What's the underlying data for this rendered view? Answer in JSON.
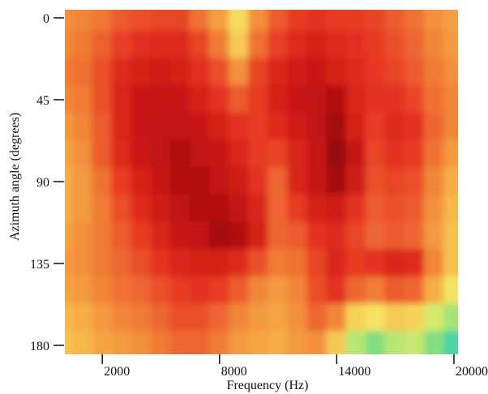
{
  "chart_data": {
    "type": "heatmap",
    "xlabel": "Frequency (Hz)",
    "ylabel": "Azimuth angle (degrees)",
    "x_ticks": [
      2000,
      8000,
      14000,
      20000
    ],
    "y_ticks": [
      0,
      45,
      90,
      135,
      180
    ],
    "xlim": [
      0,
      20000
    ],
    "ylim": [
      0,
      180
    ],
    "y_inverted": true,
    "colormap": "jet",
    "palette": [
      "#1a5fd6",
      "#17c9c9",
      "#8ee07a",
      "#f4ee6a",
      "#f7b84a",
      "#f07a35",
      "#e63423",
      "#c41212",
      "#6e0a08"
    ],
    "x_freqs": [
      0,
      1000,
      2000,
      3000,
      4000,
      5000,
      6000,
      7000,
      8000,
      9000,
      10000,
      11000,
      12000,
      13000,
      14000,
      15000,
      16000,
      17000,
      18000,
      19000,
      20000
    ],
    "y_angles": [
      0,
      15,
      30,
      45,
      60,
      75,
      90,
      105,
      120,
      135,
      150,
      165,
      180
    ],
    "value_range": [
      0,
      1
    ],
    "values": [
      [
        0.58,
        0.6,
        0.63,
        0.68,
        0.7,
        0.72,
        0.72,
        0.64,
        0.55,
        0.42,
        0.58,
        0.68,
        0.74,
        0.76,
        0.74,
        0.74,
        0.72,
        0.68,
        0.64,
        0.58,
        0.55
      ],
      [
        0.6,
        0.62,
        0.67,
        0.73,
        0.77,
        0.78,
        0.78,
        0.72,
        0.62,
        0.46,
        0.64,
        0.73,
        0.78,
        0.82,
        0.78,
        0.77,
        0.74,
        0.7,
        0.66,
        0.6,
        0.56
      ],
      [
        0.62,
        0.64,
        0.7,
        0.78,
        0.82,
        0.84,
        0.82,
        0.77,
        0.7,
        0.58,
        0.72,
        0.8,
        0.84,
        0.86,
        0.82,
        0.78,
        0.75,
        0.72,
        0.68,
        0.62,
        0.58
      ],
      [
        0.6,
        0.62,
        0.7,
        0.8,
        0.86,
        0.87,
        0.86,
        0.82,
        0.76,
        0.68,
        0.74,
        0.82,
        0.86,
        0.88,
        0.9,
        0.8,
        0.76,
        0.76,
        0.72,
        0.64,
        0.6
      ],
      [
        0.56,
        0.6,
        0.68,
        0.8,
        0.86,
        0.88,
        0.88,
        0.86,
        0.82,
        0.76,
        0.74,
        0.78,
        0.84,
        0.88,
        0.92,
        0.82,
        0.74,
        0.78,
        0.76,
        0.66,
        0.6
      ],
      [
        0.54,
        0.58,
        0.68,
        0.78,
        0.85,
        0.88,
        0.9,
        0.88,
        0.86,
        0.8,
        0.74,
        0.72,
        0.8,
        0.86,
        0.94,
        0.86,
        0.72,
        0.76,
        0.74,
        0.64,
        0.56
      ],
      [
        0.52,
        0.56,
        0.64,
        0.74,
        0.82,
        0.86,
        0.9,
        0.9,
        0.88,
        0.84,
        0.76,
        0.66,
        0.8,
        0.86,
        0.92,
        0.84,
        0.7,
        0.72,
        0.7,
        0.6,
        0.52
      ],
      [
        0.52,
        0.56,
        0.62,
        0.7,
        0.78,
        0.84,
        0.88,
        0.9,
        0.9,
        0.88,
        0.8,
        0.66,
        0.74,
        0.82,
        0.84,
        0.76,
        0.68,
        0.7,
        0.68,
        0.58,
        0.5
      ],
      [
        0.54,
        0.58,
        0.62,
        0.68,
        0.74,
        0.8,
        0.86,
        0.88,
        0.92,
        0.9,
        0.82,
        0.66,
        0.68,
        0.76,
        0.78,
        0.72,
        0.66,
        0.68,
        0.66,
        0.56,
        0.48
      ],
      [
        0.56,
        0.58,
        0.62,
        0.66,
        0.7,
        0.76,
        0.8,
        0.82,
        0.82,
        0.78,
        0.7,
        0.62,
        0.64,
        0.72,
        0.8,
        0.74,
        0.76,
        0.8,
        0.78,
        0.6,
        0.48
      ],
      [
        0.54,
        0.56,
        0.6,
        0.64,
        0.66,
        0.7,
        0.74,
        0.76,
        0.74,
        0.68,
        0.6,
        0.56,
        0.6,
        0.7,
        0.76,
        0.66,
        0.62,
        0.68,
        0.66,
        0.52,
        0.4
      ],
      [
        0.5,
        0.52,
        0.56,
        0.6,
        0.62,
        0.66,
        0.7,
        0.7,
        0.66,
        0.6,
        0.56,
        0.54,
        0.58,
        0.66,
        0.6,
        0.44,
        0.4,
        0.46,
        0.44,
        0.34,
        0.28
      ],
      [
        0.48,
        0.5,
        0.54,
        0.56,
        0.58,
        0.62,
        0.66,
        0.66,
        0.62,
        0.56,
        0.54,
        0.52,
        0.56,
        0.58,
        0.46,
        0.3,
        0.24,
        0.3,
        0.32,
        0.24,
        0.18
      ]
    ]
  }
}
